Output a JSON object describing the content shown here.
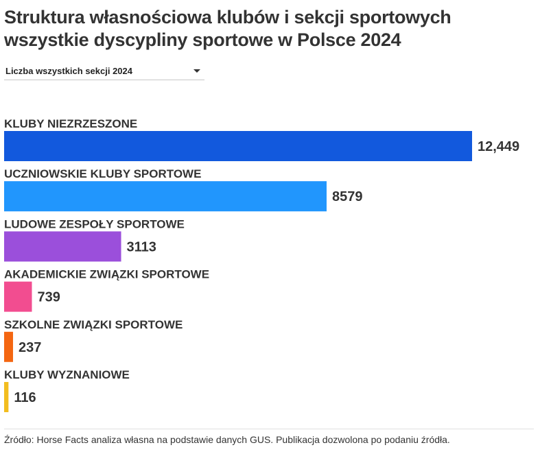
{
  "title": "Struktura własnościowa klubów i sekcji sportowych wszystkie dyscypliny sportowe w Polsce 2024",
  "dropdown": {
    "selected": "Liczba wszystkich sekcji 2024"
  },
  "source": "Źródło: Horse Facts analiza własna na podstawie danych GUS. Publikacja dozwolona po podaniu źródła.",
  "chart_data": {
    "type": "bar",
    "orientation": "horizontal",
    "title": "Struktura własnościowa klubów i sekcji sportowych wszystkie dyscypliny sportowe w Polsce 2024",
    "xlabel": "",
    "ylabel": "",
    "categories": [
      "KLUBY NIEZRZESZONE",
      "UCZNIOWSKIE KLUBY SPORTOWE",
      "LUDOWE ZESPOŁY SPORTOWE",
      "AKADEMICKIE ZWIĄZKI SPORTOWE",
      "SZKOLNE ZWIĄZKI SPORTOWE",
      "KLUBY WYZNANIOWE"
    ],
    "values": [
      12449,
      8579,
      3113,
      739,
      237,
      116
    ],
    "value_labels": [
      "12,449",
      "8579",
      "3113",
      "739",
      "237",
      "116"
    ],
    "colors": [
      "#1259dd",
      "#2196fd",
      "#9b4fdb",
      "#f24d90",
      "#f46611",
      "#f2bd1f"
    ],
    "xlim": [
      0,
      12449
    ],
    "grid": false,
    "legend": "none"
  }
}
